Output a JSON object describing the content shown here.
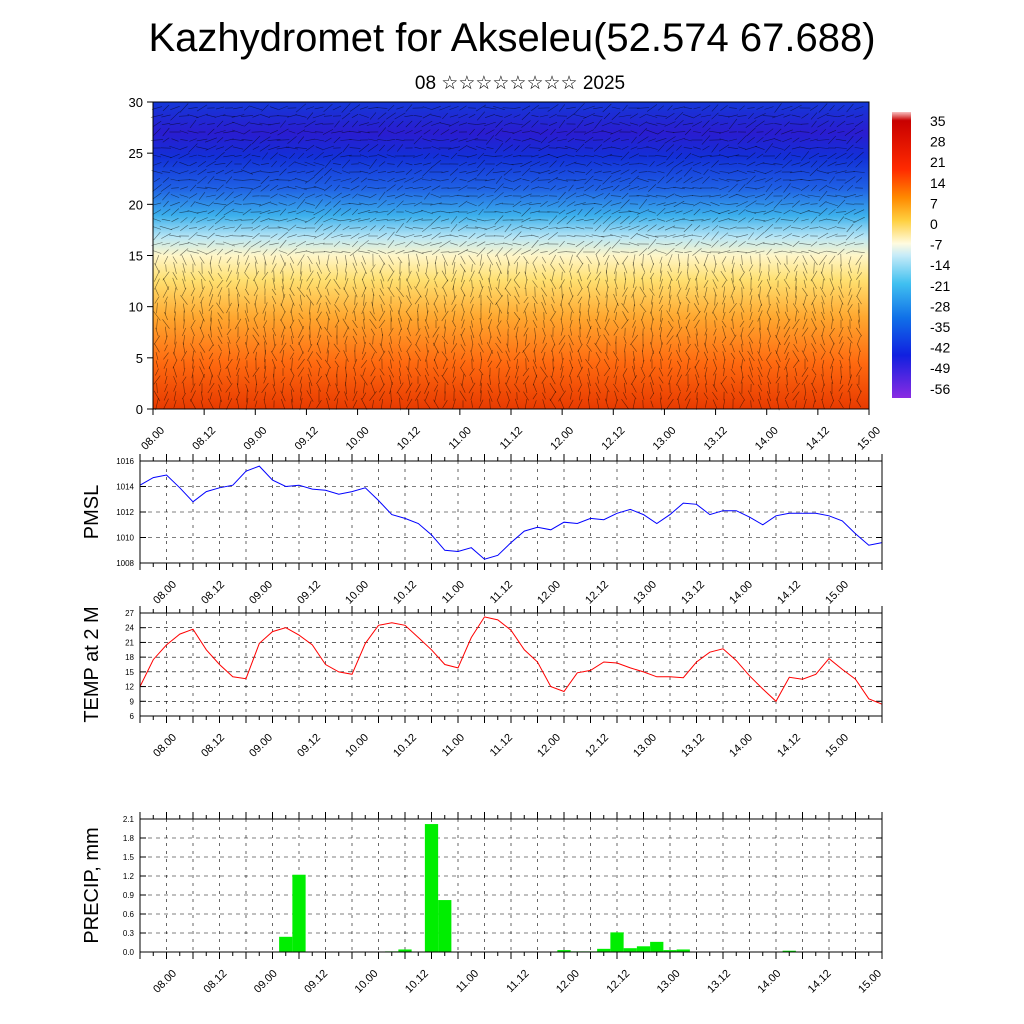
{
  "title": "Kazhydromet for Akseleu(52.574 67.688)",
  "subtitle": "08 ☆☆☆☆☆☆☆☆ 2025",
  "time_ticks": [
    "08.00",
    "08.12",
    "09.00",
    "09.12",
    "10.00",
    "10.12",
    "11.00",
    "11.12",
    "12.00",
    "12.12",
    "13.00",
    "13.12",
    "14.00",
    "14.12",
    "15.00"
  ],
  "colorbar_labels": [
    "35",
    "28",
    "21",
    "14",
    "7",
    "0",
    "-7",
    "-14",
    "-21",
    "-28",
    "-35",
    "-42",
    "-49",
    "-56"
  ],
  "chart_data": [
    {
      "type": "heatmap",
      "title": "",
      "xlabel": "",
      "ylabel": "",
      "ylim": [
        0,
        30
      ],
      "y_ticks": [
        0,
        5,
        10,
        15,
        20,
        25,
        30
      ],
      "colorbar": {
        "min": -56,
        "max": 35,
        "ticks": [
          35,
          28,
          21,
          14,
          7,
          0,
          -7,
          -14,
          -21,
          -28,
          -35,
          -42,
          -49,
          -56
        ]
      },
      "overlay": "wind vectors"
    },
    {
      "type": "line",
      "ylabel": "PMSL",
      "ylim": [
        1008,
        1016
      ],
      "y_ticks": [
        1008,
        1010,
        1012,
        1014,
        1016
      ],
      "color": "#0000ff",
      "grid": true,
      "x_hours": [
        0,
        3,
        6,
        9,
        12,
        15,
        18,
        21,
        24,
        27,
        30,
        33,
        36,
        39,
        42,
        45,
        48,
        51,
        54,
        57,
        60,
        63,
        66,
        69,
        72,
        75,
        78,
        81,
        84,
        87,
        90,
        93,
        96,
        99,
        102,
        105,
        108,
        111,
        114,
        117,
        120,
        123,
        126,
        129,
        132,
        135,
        138,
        141,
        144,
        147,
        150,
        153,
        156,
        159,
        162,
        165,
        168
      ],
      "values": [
        1014.1,
        1014.7,
        1014.9,
        1013.9,
        1012.8,
        1013.6,
        1013.9,
        1014.1,
        1015.2,
        1015.6,
        1014.5,
        1014.0,
        1014.1,
        1013.8,
        1013.7,
        1013.4,
        1013.6,
        1013.9,
        1012.9,
        1011.8,
        1011.5,
        1011.1,
        1010.2,
        1009.0,
        1008.9,
        1009.2,
        1008.3,
        1008.6,
        1009.6,
        1010.5,
        1010.8,
        1010.6,
        1011.2,
        1011.1,
        1011.5,
        1011.4,
        1011.9,
        1012.2,
        1011.8,
        1011.1,
        1011.8,
        1012.7,
        1012.6,
        1011.8,
        1012.1,
        1012.1,
        1011.6,
        1011.0,
        1011.7,
        1011.9,
        1011.9,
        1011.9,
        1011.7,
        1011.3,
        1010.3,
        1009.4,
        1009.6
      ]
    },
    {
      "type": "line",
      "ylabel": "TEMP at 2 M",
      "ylim": [
        6,
        27
      ],
      "y_ticks": [
        6,
        9,
        12,
        15,
        18,
        21,
        24,
        27
      ],
      "color": "#ff0000",
      "grid": true,
      "x_hours": [
        0,
        3,
        6,
        9,
        12,
        15,
        18,
        21,
        24,
        27,
        30,
        33,
        36,
        39,
        42,
        45,
        48,
        51,
        54,
        57,
        60,
        63,
        66,
        69,
        72,
        75,
        78,
        81,
        84,
        87,
        90,
        93,
        96,
        99,
        102,
        105,
        108,
        111,
        114,
        117,
        120,
        123,
        126,
        129,
        132,
        135,
        138,
        141,
        144,
        147,
        150,
        153,
        156,
        159,
        162,
        165,
        168
      ],
      "values": [
        12.0,
        17.5,
        20.5,
        22.7,
        23.7,
        19.5,
        16.5,
        14.0,
        13.6,
        20.8,
        23.2,
        24.0,
        22.5,
        20.5,
        16.5,
        15.0,
        14.5,
        20.8,
        24.5,
        25.0,
        24.5,
        22.0,
        19.5,
        16.5,
        15.8,
        22.0,
        26.2,
        25.6,
        23.5,
        19.5,
        17.0,
        12.0,
        11.0,
        14.8,
        15.3,
        17.0,
        16.8,
        15.8,
        15.0,
        14.0,
        14.0,
        13.8,
        17.0,
        19.0,
        19.7,
        17.3,
        14.2,
        11.5,
        9.0,
        13.9,
        13.5,
        14.5,
        17.7,
        15.5,
        13.5,
        9.5,
        8.4
      ]
    },
    {
      "type": "bar",
      "ylabel": "PRECIP, mm",
      "ylim": [
        0,
        2.1
      ],
      "y_ticks": [
        0.0,
        0.3,
        0.6,
        0.9,
        1.2,
        1.5,
        1.8,
        2.1
      ],
      "color": "#00ee00",
      "grid": true,
      "bar_width_hours": 3,
      "bars": [
        {
          "x_hours": 33,
          "value": 0.24
        },
        {
          "x_hours": 36,
          "value": 1.22
        },
        {
          "x_hours": 57,
          "value": 0.01
        },
        {
          "x_hours": 60,
          "value": 0.04
        },
        {
          "x_hours": 66,
          "value": 2.02
        },
        {
          "x_hours": 69,
          "value": 0.82
        },
        {
          "x_hours": 96,
          "value": 0.03
        },
        {
          "x_hours": 99,
          "value": 0.01
        },
        {
          "x_hours": 102,
          "value": 0.01
        },
        {
          "x_hours": 105,
          "value": 0.05
        },
        {
          "x_hours": 108,
          "value": 0.31
        },
        {
          "x_hours": 111,
          "value": 0.06
        },
        {
          "x_hours": 114,
          "value": 0.09
        },
        {
          "x_hours": 117,
          "value": 0.16
        },
        {
          "x_hours": 120,
          "value": 0.03
        },
        {
          "x_hours": 123,
          "value": 0.04
        },
        {
          "x_hours": 147,
          "value": 0.02
        }
      ]
    }
  ]
}
